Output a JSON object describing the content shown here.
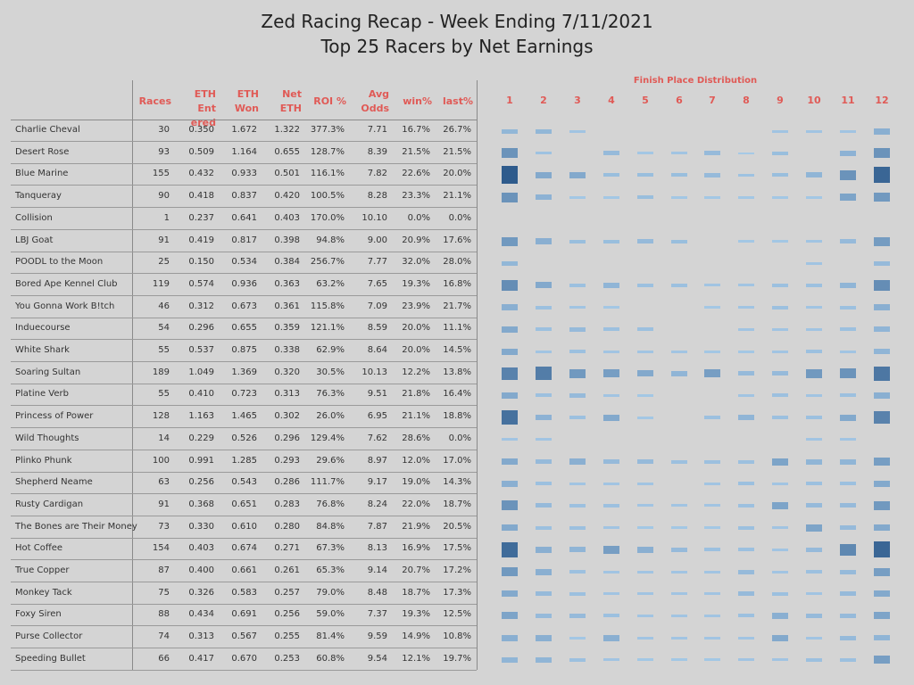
{
  "title": "Zed Racing Recap - Week Ending 7/11/2021",
  "subtitle": "Top 25 Racers by Net Earnings",
  "columns": [
    "Races",
    "ETH Entered",
    "ETH Won",
    "Net ETH",
    "ROI %",
    "Avg Odds",
    "win%",
    "last%"
  ],
  "column_headers": {
    "races": "Races",
    "eth_entered_1": "ETH Ent",
    "eth_entered_2": "ered",
    "eth_won_1": "ETH",
    "eth_won_2": "Won",
    "net_eth_1": "Net",
    "net_eth_2": "ETH",
    "roi": "ROI %",
    "avg_odds_1": "Avg",
    "avg_odds_2": "Odds",
    "win": "win%",
    "last": "last%"
  },
  "distribution_title": "Finish Place Distribution",
  "places": [
    "1",
    "2",
    "3",
    "4",
    "5",
    "6",
    "7",
    "8",
    "9",
    "10",
    "11",
    "12"
  ],
  "colors": {
    "header_text": "#e05a56",
    "mark_light": "#a8cbe8",
    "mark_dark": "#2e5b8c"
  },
  "chart_data": {
    "type": "table",
    "title": "Zed Racing Recap - Week Ending 7/11/2021",
    "subtitle": "Top 25 Racers by Net Earnings",
    "rows": [
      {
        "name": "Charlie Cheval",
        "races": "30",
        "entered": "0.350",
        "won": "1.672",
        "net": "1.322",
        "roi": "377.3%",
        "odds": "7.71",
        "win": "16.7%",
        "last": "26.7%",
        "dist": [
          0.18,
          0.18,
          0.06,
          0,
          0,
          0,
          0,
          0,
          0.06,
          0.06,
          0.06,
          0.25
        ]
      },
      {
        "name": "Desert Rose",
        "races": "93",
        "entered": "0.509",
        "won": "1.164",
        "net": "0.655",
        "roi": "128.7%",
        "odds": "8.39",
        "win": "21.5%",
        "last": "21.5%",
        "dist": [
          0.5,
          0.08,
          0,
          0.15,
          0.04,
          0.06,
          0.15,
          0.02,
          0.12,
          0,
          0.22,
          0.5
        ]
      },
      {
        "name": "Blue Marine",
        "races": "155",
        "entered": "0.432",
        "won": "0.933",
        "net": "0.501",
        "roi": "116.1%",
        "odds": "7.82",
        "win": "22.6%",
        "last": "20.0%",
        "dist": [
          1.0,
          0.3,
          0.3,
          0.12,
          0.12,
          0.12,
          0.15,
          0.08,
          0.12,
          0.2,
          0.5,
          0.9
        ]
      },
      {
        "name": "Tanqueray",
        "races": "90",
        "entered": "0.418",
        "won": "0.837",
        "net": "0.420",
        "roi": "100.5%",
        "odds": "8.28",
        "win": "23.3%",
        "last": "21.1%",
        "dist": [
          0.5,
          0.22,
          0.04,
          0.04,
          0.12,
          0.04,
          0.04,
          0.04,
          0.04,
          0.04,
          0.35,
          0.45
        ]
      },
      {
        "name": "Collision",
        "races": "1",
        "entered": "0.237",
        "won": "0.641",
        "net": "0.403",
        "roi": "170.0%",
        "odds": "10.10",
        "win": "0.0%",
        "last": "0.0%",
        "dist": [
          0,
          0,
          0,
          0,
          0,
          0,
          0,
          0,
          0,
          0,
          0,
          0
        ]
      },
      {
        "name": "LBJ Goat",
        "races": "91",
        "entered": "0.419",
        "won": "0.817",
        "net": "0.398",
        "roi": "94.8%",
        "odds": "9.00",
        "win": "20.9%",
        "last": "17.6%",
        "dist": [
          0.45,
          0.25,
          0.12,
          0.12,
          0.15,
          0.12,
          0,
          0.04,
          0.04,
          0.06,
          0.15,
          0.42
        ]
      },
      {
        "name": "POODL to the Moon",
        "races": "25",
        "entered": "0.150",
        "won": "0.534",
        "net": "0.384",
        "roi": "256.7%",
        "odds": "7.77",
        "win": "32.0%",
        "last": "28.0%",
        "dist": [
          0.18,
          0,
          0,
          0,
          0,
          0,
          0,
          0,
          0,
          0.06,
          0,
          0.15
        ]
      },
      {
        "name": "Bored Ape Kennel Club",
        "races": "119",
        "entered": "0.574",
        "won": "0.936",
        "net": "0.363",
        "roi": "63.2%",
        "odds": "7.65",
        "win": "19.3%",
        "last": "16.8%",
        "dist": [
          0.55,
          0.3,
          0.1,
          0.2,
          0.1,
          0.1,
          0.06,
          0.06,
          0.1,
          0.1,
          0.2,
          0.55
        ]
      },
      {
        "name": "You Gonna Work B!tch",
        "races": "46",
        "entered": "0.312",
        "won": "0.673",
        "net": "0.361",
        "roi": "115.8%",
        "odds": "7.09",
        "win": "23.9%",
        "last": "21.7%",
        "dist": [
          0.25,
          0.1,
          0.06,
          0.04,
          0,
          0,
          0.04,
          0.06,
          0.1,
          0.06,
          0.1,
          0.25
        ]
      },
      {
        "name": "Induecourse",
        "races": "54",
        "entered": "0.296",
        "won": "0.655",
        "net": "0.359",
        "roi": "121.1%",
        "odds": "8.59",
        "win": "20.0%",
        "last": "11.1%",
        "dist": [
          0.3,
          0.1,
          0.15,
          0.1,
          0.1,
          0,
          0,
          0.06,
          0.06,
          0.06,
          0.1,
          0.2
        ]
      },
      {
        "name": "White Shark",
        "races": "55",
        "entered": "0.537",
        "won": "0.875",
        "net": "0.338",
        "roi": "62.9%",
        "odds": "8.64",
        "win": "20.0%",
        "last": "14.5%",
        "dist": [
          0.3,
          0.06,
          0.1,
          0.06,
          0.06,
          0.06,
          0.04,
          0.04,
          0.06,
          0.1,
          0.06,
          0.2
        ]
      },
      {
        "name": "Soaring Sultan",
        "races": "189",
        "entered": "1.049",
        "won": "1.369",
        "net": "0.320",
        "roi": "30.5%",
        "odds": "10.13",
        "win": "12.2%",
        "last": "13.8%",
        "dist": [
          0.65,
          0.7,
          0.45,
          0.4,
          0.3,
          0.2,
          0.4,
          0.15,
          0.15,
          0.45,
          0.5,
          0.75
        ]
      },
      {
        "name": "Platine Verb",
        "races": "55",
        "entered": "0.410",
        "won": "0.723",
        "net": "0.313",
        "roi": "76.3%",
        "odds": "9.51",
        "win": "21.8%",
        "last": "16.4%",
        "dist": [
          0.3,
          0.1,
          0.15,
          0.06,
          0.04,
          0,
          0,
          0.06,
          0.1,
          0.06,
          0.1,
          0.25
        ]
      },
      {
        "name": "Princess of Power",
        "races": "128",
        "entered": "1.163",
        "won": "1.465",
        "net": "0.302",
        "roi": "26.0%",
        "odds": "6.95",
        "win": "21.1%",
        "last": "18.8%",
        "dist": [
          0.8,
          0.22,
          0.1,
          0.3,
          0.04,
          0,
          0.1,
          0.2,
          0.1,
          0.1,
          0.3,
          0.65
        ]
      },
      {
        "name": "Wild Thoughts",
        "races": "14",
        "entered": "0.229",
        "won": "0.526",
        "net": "0.296",
        "roi": "129.4%",
        "odds": "7.62",
        "win": "28.6%",
        "last": "0.0%",
        "dist": [
          0.06,
          0.06,
          0,
          0,
          0,
          0,
          0,
          0,
          0,
          0.06,
          0.06,
          0
        ]
      },
      {
        "name": "Plinko Phunk",
        "races": "100",
        "entered": "0.991",
        "won": "1.285",
        "net": "0.293",
        "roi": "29.6%",
        "odds": "8.97",
        "win": "12.0%",
        "last": "17.0%",
        "dist": [
          0.3,
          0.15,
          0.25,
          0.15,
          0.15,
          0.1,
          0.1,
          0.1,
          0.35,
          0.2,
          0.2,
          0.4
        ]
      },
      {
        "name": "Shepherd Neame",
        "races": "63",
        "entered": "0.256",
        "won": "0.543",
        "net": "0.286",
        "roi": "111.7%",
        "odds": "9.17",
        "win": "19.0%",
        "last": "14.3%",
        "dist": [
          0.25,
          0.1,
          0.06,
          0.06,
          0.06,
          0,
          0.06,
          0.1,
          0.06,
          0.1,
          0.1,
          0.3
        ]
      },
      {
        "name": "Rusty Cardigan",
        "races": "91",
        "entered": "0.368",
        "won": "0.651",
        "net": "0.283",
        "roi": "76.8%",
        "odds": "8.24",
        "win": "22.0%",
        "last": "18.7%",
        "dist": [
          0.5,
          0.15,
          0.1,
          0.1,
          0.06,
          0.06,
          0.06,
          0.1,
          0.35,
          0.15,
          0.15,
          0.45
        ]
      },
      {
        "name": "The Bones are Their Money",
        "races": "73",
        "entered": "0.330",
        "won": "0.610",
        "net": "0.280",
        "roi": "84.8%",
        "odds": "7.87",
        "win": "21.9%",
        "last": "20.5%",
        "dist": [
          0.3,
          0.1,
          0.1,
          0.06,
          0.04,
          0.04,
          0.04,
          0.1,
          0.06,
          0.35,
          0.15,
          0.3
        ]
      },
      {
        "name": "Hot Coffee",
        "races": "154",
        "entered": "0.403",
        "won": "0.674",
        "net": "0.271",
        "roi": "67.3%",
        "odds": "8.13",
        "win": "16.9%",
        "last": "17.5%",
        "dist": [
          0.85,
          0.25,
          0.2,
          0.4,
          0.25,
          0.15,
          0.1,
          0.1,
          0.06,
          0.15,
          0.6,
          0.9
        ]
      },
      {
        "name": "True Copper",
        "races": "87",
        "entered": "0.400",
        "won": "0.661",
        "net": "0.261",
        "roi": "65.3%",
        "odds": "9.14",
        "win": "20.7%",
        "last": "17.2%",
        "dist": [
          0.45,
          0.25,
          0.1,
          0.06,
          0.06,
          0.06,
          0.06,
          0.15,
          0.06,
          0.1,
          0.15,
          0.4
        ]
      },
      {
        "name": "Monkey Tack",
        "races": "75",
        "entered": "0.326",
        "won": "0.583",
        "net": "0.257",
        "roi": "79.0%",
        "odds": "8.48",
        "win": "18.7%",
        "last": "17.3%",
        "dist": [
          0.3,
          0.15,
          0.1,
          0.06,
          0.06,
          0.06,
          0.06,
          0.15,
          0.1,
          0.06,
          0.15,
          0.3
        ]
      },
      {
        "name": "Foxy Siren",
        "races": "88",
        "entered": "0.434",
        "won": "0.691",
        "net": "0.256",
        "roi": "59.0%",
        "odds": "7.37",
        "win": "19.3%",
        "last": "12.5%",
        "dist": [
          0.35,
          0.15,
          0.15,
          0.1,
          0.06,
          0.06,
          0.06,
          0.1,
          0.25,
          0.15,
          0.15,
          0.35
        ]
      },
      {
        "name": "Purse Collector",
        "races": "74",
        "entered": "0.313",
        "won": "0.567",
        "net": "0.255",
        "roi": "81.4%",
        "odds": "9.59",
        "win": "14.9%",
        "last": "10.8%",
        "dist": [
          0.25,
          0.25,
          0.04,
          0.25,
          0.06,
          0.06,
          0.06,
          0.06,
          0.3,
          0.06,
          0.15,
          0.2
        ]
      },
      {
        "name": "Speeding Bullet",
        "races": "66",
        "entered": "0.417",
        "won": "0.670",
        "net": "0.253",
        "roi": "60.8%",
        "odds": "9.54",
        "win": "12.1%",
        "last": "19.7%",
        "dist": [
          0.2,
          0.2,
          0.1,
          0.06,
          0.04,
          0.04,
          0.04,
          0.06,
          0.06,
          0.1,
          0.1,
          0.4
        ]
      }
    ]
  }
}
